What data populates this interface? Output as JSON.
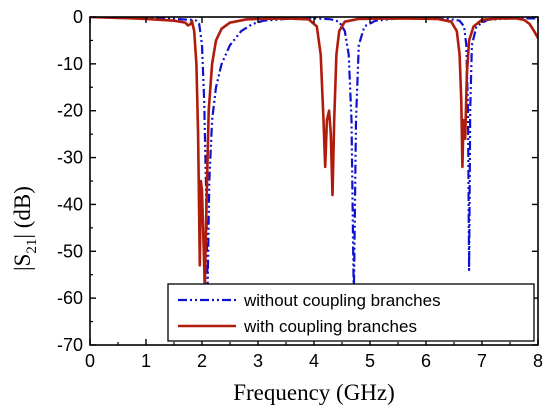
{
  "chart_data": {
    "type": "line",
    "xlabel": "Frequency (GHz)",
    "ylabel_main": "|S",
    "ylabel_sub": "21",
    "ylabel_tail": "|   (dB)",
    "xlim": [
      0,
      8
    ],
    "ylim": [
      -70,
      0
    ],
    "x_ticks": [
      0,
      1,
      2,
      3,
      4,
      5,
      6,
      7,
      8
    ],
    "y_ticks": [
      0,
      -10,
      -20,
      -30,
      -40,
      -50,
      -60,
      -70
    ],
    "legend_position": "bottom-right",
    "grid": false,
    "series": [
      {
        "name": "without coupling branches",
        "color": "#1010d0",
        "dash": "dash-dot-dot",
        "points": [
          [
            0,
            0
          ],
          [
            0.5,
            -0.1
          ],
          [
            1,
            -0.2
          ],
          [
            1.5,
            -0.4
          ],
          [
            1.8,
            -0.6
          ],
          [
            1.9,
            -0.8
          ],
          [
            1.95,
            -1.5
          ],
          [
            2.0,
            -6
          ],
          [
            2.04,
            -18
          ],
          [
            2.07,
            -35
          ],
          [
            2.1,
            -58
          ],
          [
            2.13,
            -35
          ],
          [
            2.18,
            -22
          ],
          [
            2.25,
            -15
          ],
          [
            2.35,
            -10
          ],
          [
            2.5,
            -6
          ],
          [
            2.7,
            -3
          ],
          [
            2.9,
            -1.5
          ],
          [
            3.1,
            -0.8
          ],
          [
            3.5,
            -0.4
          ],
          [
            4.0,
            -0.3
          ],
          [
            4.3,
            -0.5
          ],
          [
            4.45,
            -1
          ],
          [
            4.55,
            -3
          ],
          [
            4.62,
            -8
          ],
          [
            4.67,
            -22
          ],
          [
            4.71,
            -60
          ],
          [
            4.75,
            -22
          ],
          [
            4.8,
            -6
          ],
          [
            4.9,
            -2
          ],
          [
            5.1,
            -0.8
          ],
          [
            5.5,
            -0.3
          ],
          [
            6.0,
            -0.3
          ],
          [
            6.4,
            -0.4
          ],
          [
            6.6,
            -0.8
          ],
          [
            6.68,
            -2
          ],
          [
            6.72,
            -6
          ],
          [
            6.75,
            -20
          ],
          [
            6.77,
            -54
          ],
          [
            6.79,
            -20
          ],
          [
            6.82,
            -6
          ],
          [
            6.9,
            -2
          ],
          [
            7.1,
            -0.6
          ],
          [
            7.5,
            -0.3
          ],
          [
            7.8,
            -0.3
          ],
          [
            8,
            -0.3
          ]
        ]
      },
      {
        "name": "with coupling branches",
        "color": "#b01c0c",
        "dash": "solid",
        "points": [
          [
            0,
            0
          ],
          [
            0.5,
            -0.2
          ],
          [
            1,
            -0.4
          ],
          [
            1.5,
            -0.8
          ],
          [
            1.7,
            -1.2
          ],
          [
            1.75,
            -1.8
          ],
          [
            1.8,
            -1.5
          ],
          [
            1.82,
            -0.8
          ],
          [
            1.86,
            -3
          ],
          [
            1.9,
            -10
          ],
          [
            1.93,
            -25
          ],
          [
            1.96,
            -53
          ],
          [
            1.98,
            -35
          ],
          [
            2.0,
            -37
          ],
          [
            2.02,
            -45
          ],
          [
            2.05,
            -58
          ],
          [
            2.08,
            -40
          ],
          [
            2.12,
            -20
          ],
          [
            2.18,
            -10
          ],
          [
            2.25,
            -5
          ],
          [
            2.35,
            -2.5
          ],
          [
            2.5,
            -1.2
          ],
          [
            2.8,
            -0.5
          ],
          [
            3.5,
            -0.3
          ],
          [
            3.9,
            -0.5
          ],
          [
            4.05,
            -2
          ],
          [
            4.12,
            -8
          ],
          [
            4.17,
            -22
          ],
          [
            4.2,
            -32
          ],
          [
            4.23,
            -22
          ],
          [
            4.27,
            -20
          ],
          [
            4.3,
            -25
          ],
          [
            4.33,
            -38
          ],
          [
            4.36,
            -22
          ],
          [
            4.4,
            -8
          ],
          [
            4.45,
            -3
          ],
          [
            4.55,
            -1
          ],
          [
            4.8,
            -0.4
          ],
          [
            5.5,
            -0.3
          ],
          [
            6.2,
            -0.4
          ],
          [
            6.45,
            -1
          ],
          [
            6.55,
            -3
          ],
          [
            6.6,
            -8
          ],
          [
            6.63,
            -18
          ],
          [
            6.65,
            -32
          ],
          [
            6.67,
            -22
          ],
          [
            6.7,
            -26
          ],
          [
            6.73,
            -12
          ],
          [
            6.77,
            -5
          ],
          [
            6.85,
            -2
          ],
          [
            7.0,
            -0.6
          ],
          [
            7.3,
            -0.3
          ],
          [
            7.6,
            -0.3
          ],
          [
            7.75,
            -0.6
          ],
          [
            7.85,
            -1.5
          ],
          [
            7.93,
            -3
          ],
          [
            8,
            -4.5
          ]
        ]
      }
    ]
  }
}
